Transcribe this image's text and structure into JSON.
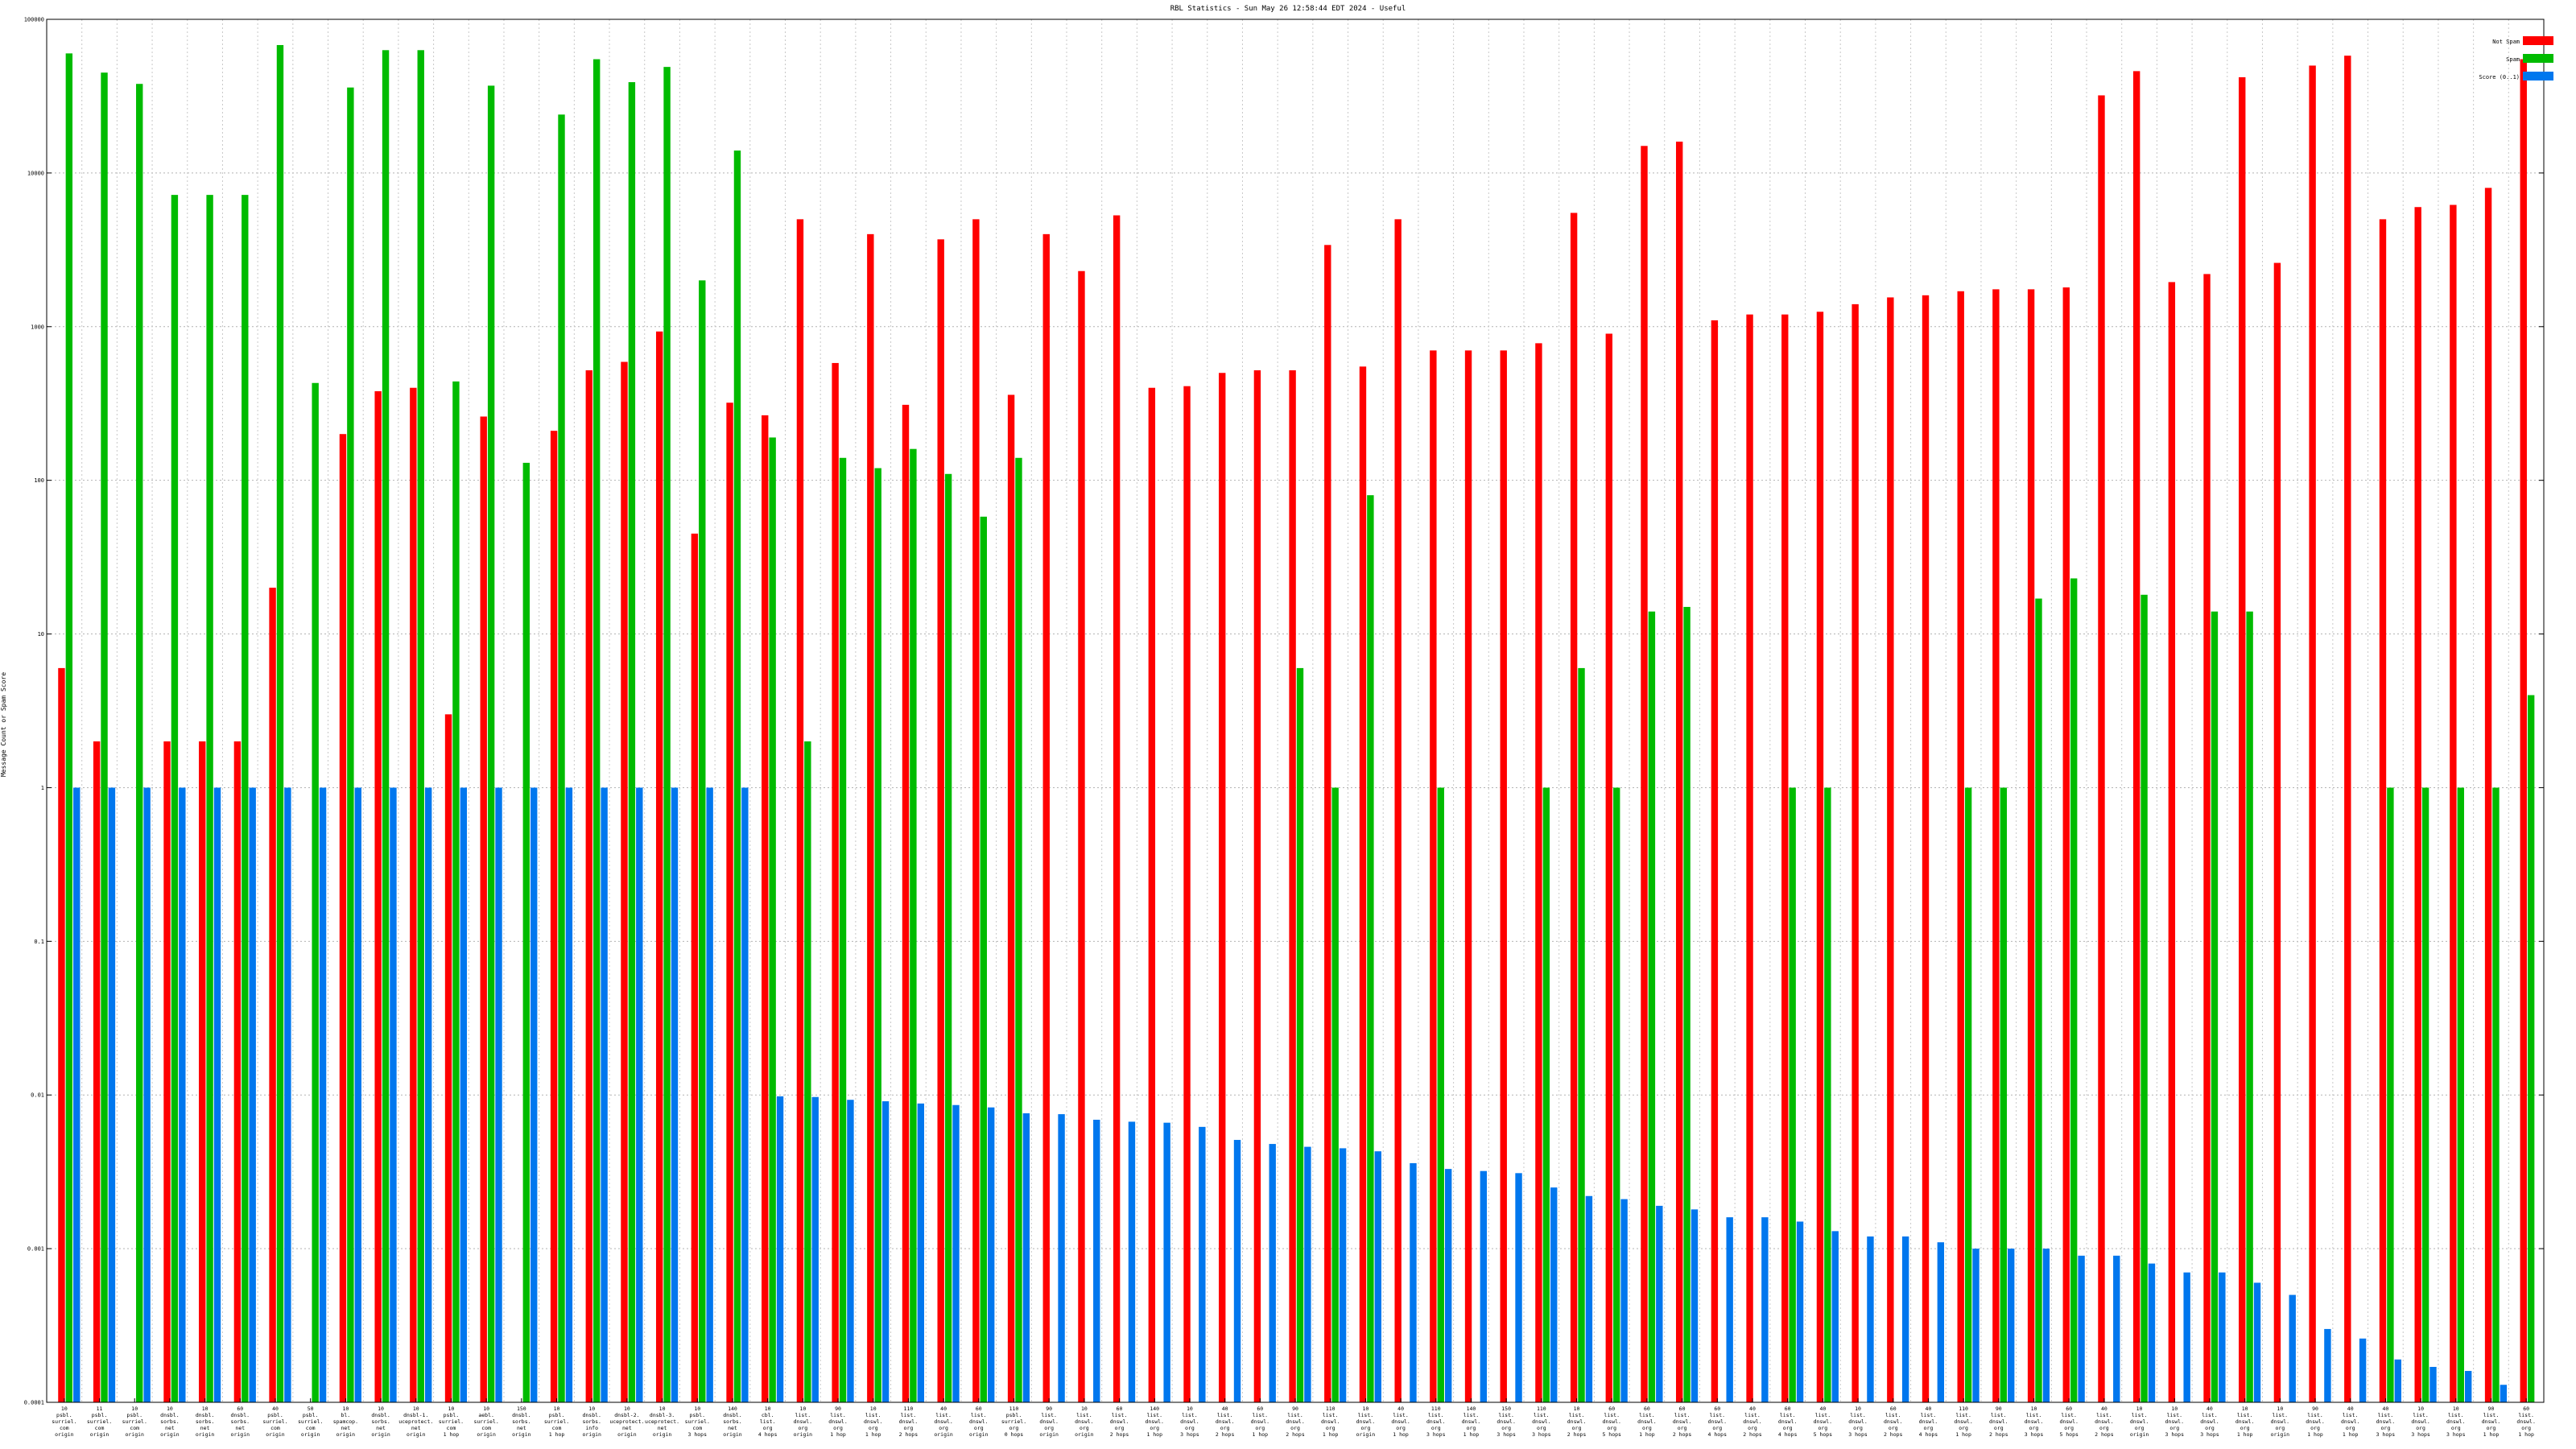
{
  "chart_data": {
    "type": "bar",
    "title": "RBL Statistics - Sun May 26 12:58:44 EDT 2024 - Useful",
    "ylabel": "Message Count or Spam Score",
    "xlabel": "",
    "yscale": "log",
    "ylim": [
      0.0001,
      100000
    ],
    "yticks": [
      "0.0001",
      "0.001",
      "0.01",
      "0.1",
      "1",
      "10",
      "100",
      "1000",
      "10000",
      "100000"
    ],
    "grid": true,
    "legend_position": "top-right",
    "categories": [
      [
        "10",
        "psbl.",
        "surriel.",
        "com",
        "origin"
      ],
      [
        "11",
        "psbl.",
        "surriel.",
        "com",
        "origin"
      ],
      [
        "10",
        "psbl.",
        "surriel.",
        "com",
        "origin"
      ],
      [
        "10",
        "dnsbl.",
        "sorbs.",
        "net",
        "origin"
      ],
      [
        "10",
        "dnsbl.",
        "sorbs.",
        "net",
        "origin"
      ],
      [
        "60",
        "dnsbl.",
        "sorbs.",
        "net",
        "origin"
      ],
      [
        "40",
        "psbl.",
        "surriel.",
        "com",
        "origin"
      ],
      [
        "50",
        "psbl.",
        "surriel.",
        "com",
        "origin"
      ],
      [
        "10",
        "bl.",
        "spamcop.",
        "net",
        "origin"
      ],
      [
        "10",
        "dnsbl.",
        "sorbs.",
        "net",
        "origin"
      ],
      [
        "10",
        "dnsbl-1.",
        "uceprotect.",
        "net",
        "origin"
      ],
      [
        "10",
        "psbl.",
        "surriel.",
        "com",
        "1 hop"
      ],
      [
        "10",
        "aebl.",
        "surriel.",
        "com",
        "origin"
      ],
      [
        "150",
        "dnsbl.",
        "sorbs.",
        "net",
        "origin"
      ],
      [
        "10",
        "psbl.",
        "surriel.",
        "com",
        "1 hop"
      ],
      [
        "10",
        "dnsbl.",
        "sorbs.",
        "info",
        "origin"
      ],
      [
        "10",
        "dnsbl-2.",
        "uceprotect.",
        "net",
        "origin"
      ],
      [
        "10",
        "dnsbl-3.",
        "uceprotect.",
        "net",
        "origin"
      ],
      [
        "10",
        "psbl.",
        "surriel.",
        "com",
        "3 hops"
      ],
      [
        "140",
        "dnsbl.",
        "sorbs.",
        "net",
        "origin"
      ],
      [
        "10",
        "cbl.",
        "list.",
        "org",
        "4 hops"
      ],
      [
        "10",
        "list.",
        "dnswl.",
        "org",
        "origin"
      ],
      [
        "90",
        "list.",
        "dnswl.",
        "org",
        "1 hop"
      ],
      [
        "10",
        "list.",
        "dnswl.",
        "org",
        "1 hop"
      ],
      [
        "110",
        "list.",
        "dnswl.",
        "org",
        "2 hops"
      ],
      [
        "40",
        "list.",
        "dnswl.",
        "org",
        "origin"
      ],
      [
        "60",
        "list.",
        "dnswl.",
        "org",
        "origin"
      ],
      [
        "110",
        "psbl.",
        "surriel.",
        "org",
        "0 hops"
      ],
      [
        "90",
        "list.",
        "dnswl.",
        "org",
        "origin"
      ],
      [
        "10",
        "list.",
        "dnswl.",
        "org",
        "origin"
      ],
      [
        "60",
        "list.",
        "dnswl.",
        "org",
        "2 hops"
      ],
      [
        "140",
        "list.",
        "dnswl.",
        "org",
        "1 hop"
      ],
      [
        "10",
        "list.",
        "dnswl.",
        "org",
        "3 hops"
      ],
      [
        "40",
        "list.",
        "dnswl.",
        "org",
        "2 hops"
      ],
      [
        "60",
        "list.",
        "dnswl.",
        "org",
        "1 hop"
      ],
      [
        "90",
        "list.",
        "dnswl.",
        "org",
        "2 hops"
      ],
      [
        "110",
        "list.",
        "dnswl.",
        "org",
        "1 hop"
      ],
      [
        "10",
        "list.",
        "dnswl.",
        "org",
        "origin"
      ],
      [
        "40",
        "list.",
        "dnswl.",
        "org",
        "1 hop"
      ],
      [
        "110",
        "list.",
        "dnswl.",
        "org",
        "3 hops"
      ],
      [
        "140",
        "list.",
        "dnswl.",
        "org",
        "1 hop"
      ],
      [
        "150",
        "list.",
        "dnswl.",
        "org",
        "3 hops"
      ],
      [
        "110",
        "list.",
        "dnswl.",
        "org",
        "3 hops"
      ],
      [
        "10",
        "list.",
        "dnswl.",
        "org",
        "2 hops"
      ],
      [
        "60",
        "list.",
        "dnswl.",
        "org",
        "5 hops"
      ],
      [
        "60",
        "list.",
        "dnswl.",
        "org",
        "1 hop"
      ],
      [
        "60",
        "list.",
        "dnswl.",
        "org",
        "2 hops"
      ],
      [
        "60",
        "list.",
        "dnswl.",
        "org",
        "4 hops"
      ],
      [
        "40",
        "list.",
        "dnswl.",
        "org",
        "2 hops"
      ],
      [
        "60",
        "list.",
        "dnswl.",
        "org",
        "4 hops"
      ],
      [
        "40",
        "list.",
        "dnswl.",
        "org",
        "5 hops"
      ],
      [
        "10",
        "list.",
        "dnswl.",
        "org",
        "3 hops"
      ],
      [
        "60",
        "list.",
        "dnswl.",
        "org",
        "2 hops"
      ],
      [
        "40",
        "list.",
        "dnswl.",
        "org",
        "4 hops"
      ],
      [
        "110",
        "list.",
        "dnswl.",
        "org",
        "1 hop"
      ],
      [
        "90",
        "list.",
        "dnswl.",
        "org",
        "2 hops"
      ],
      [
        "10",
        "list.",
        "dnswl.",
        "org",
        "3 hops"
      ],
      [
        "60",
        "list.",
        "dnswl.",
        "org",
        "5 hops"
      ],
      [
        "40",
        "list.",
        "dnswl.",
        "org",
        "2 hops"
      ],
      [
        "10",
        "list.",
        "dnswl.",
        "org",
        "origin"
      ],
      [
        "10",
        "list.",
        "dnswl.",
        "org",
        "3 hops"
      ],
      [
        "40",
        "list.",
        "dnswl.",
        "org",
        "3 hops"
      ],
      [
        "10",
        "list.",
        "dnswl.",
        "org",
        "1 hop"
      ],
      [
        "10",
        "list.",
        "dnswl.",
        "org",
        "origin"
      ],
      [
        "90",
        "list.",
        "dnswl.",
        "org",
        "1 hop"
      ],
      [
        "40",
        "list.",
        "dnswl.",
        "org",
        "1 hop"
      ],
      [
        "40",
        "list.",
        "dnswl.",
        "org",
        "3 hops"
      ],
      [
        "10",
        "list.",
        "dnswl.",
        "org",
        "3 hops"
      ],
      [
        "10",
        "list.",
        "dnswl.",
        "org",
        "3 hops"
      ],
      [
        "90",
        "list.",
        "dnswl.",
        "org",
        "1 hop"
      ],
      [
        "60",
        "list.",
        "dnswl.",
        "org",
        "1 hop"
      ]
    ],
    "series": [
      {
        "name": "Not Spam",
        "color": "#ff0000",
        "values": [
          6,
          2,
          null,
          2,
          2,
          2,
          20,
          null,
          200,
          380,
          400,
          3,
          260,
          null,
          210,
          520,
          590,
          930,
          45,
          320,
          265,
          5000,
          580,
          4000,
          310,
          3700,
          5000,
          360,
          4000,
          2300,
          5300,
          400,
          410,
          500,
          520,
          520,
          3400,
          550,
          5000,
          700,
          700,
          700,
          780,
          5500,
          900,
          15000,
          16000,
          1100,
          1200,
          1200,
          1250,
          1400,
          1550,
          1600,
          1700,
          1750,
          1750,
          1800,
          32000,
          46000,
          1950,
          2200,
          42000,
          2600,
          50000,
          58000,
          5000,
          6000,
          6200,
          8000,
          55000
        ]
      },
      {
        "name": "Spam",
        "color": "#00bb00",
        "values": [
          60000,
          45000,
          38000,
          7200,
          7200,
          7200,
          68000,
          430,
          36000,
          63000,
          63000,
          440,
          37000,
          130,
          24000,
          55000,
          39000,
          49000,
          2000,
          14000,
          190,
          2,
          140,
          120,
          160,
          110,
          58,
          140,
          null,
          null,
          null,
          null,
          null,
          null,
          null,
          6,
          1,
          80,
          null,
          1,
          null,
          null,
          1,
          6,
          1,
          14,
          15,
          null,
          null,
          1,
          1,
          null,
          null,
          null,
          1,
          1,
          17,
          23,
          null,
          18,
          null,
          14,
          14,
          null,
          null,
          null,
          1,
          1,
          1,
          1,
          4
        ]
      },
      {
        "name": "Score (0..1)",
        "color": "#0077ee",
        "values": [
          1,
          1,
          1,
          1,
          1,
          1,
          1,
          1,
          1,
          1,
          1,
          1,
          1,
          1,
          1,
          1,
          1,
          1,
          1,
          1,
          0.0098,
          0.0097,
          0.0093,
          0.0091,
          0.0088,
          0.0086,
          0.0083,
          0.0076,
          0.0075,
          0.0069,
          0.0067,
          0.0066,
          0.0062,
          0.0051,
          0.0048,
          0.0046,
          0.0045,
          0.0043,
          0.0036,
          0.0033,
          0.0032,
          0.0031,
          0.0025,
          0.0022,
          0.0021,
          0.0019,
          0.0018,
          0.0016,
          0.0016,
          0.0015,
          0.0013,
          0.0012,
          0.0012,
          0.0011,
          0.001,
          0.001,
          0.001,
          0.0009,
          0.0009,
          0.0008,
          0.0007,
          0.0007,
          0.0006,
          0.0005,
          0.0003,
          0.00026,
          0.00019,
          0.00017,
          0.00016,
          0.00013,
          7e-05
        ]
      }
    ]
  }
}
